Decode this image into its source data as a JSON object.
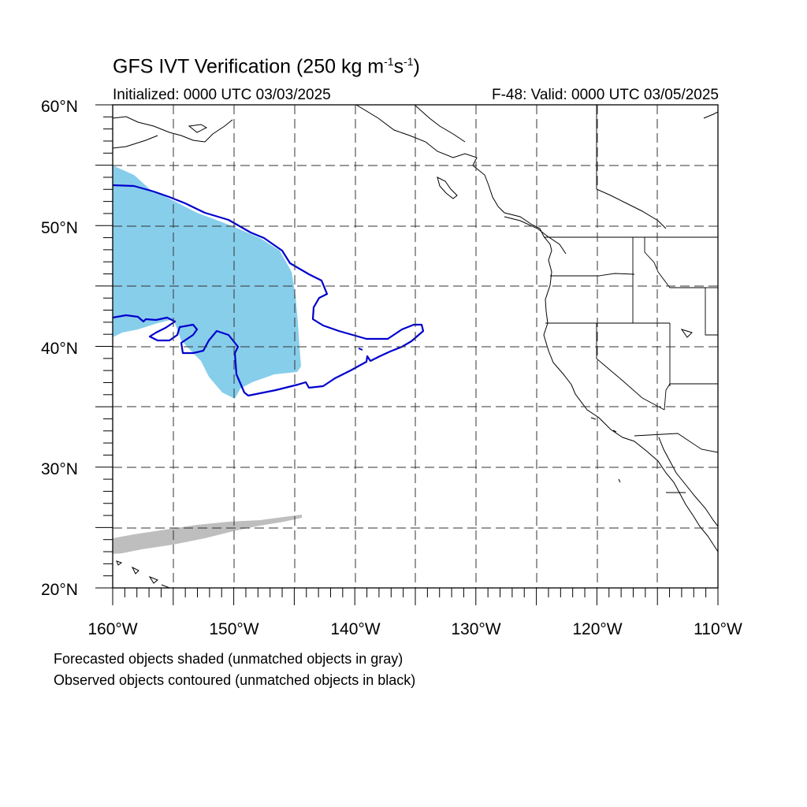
{
  "title": {
    "main": "GFS IVT Verification (250 kg m",
    "exp1": "-1",
    "mid": "s",
    "exp2": "-1",
    "end": ")"
  },
  "subtitle_left": "Initialized: 0000 UTC 03/03/2025",
  "subtitle_right": "F-48: Valid: 0000 UTC 03/05/2025",
  "lat_labels": [
    "60°N",
    "50°N",
    "40°N",
    "30°N",
    "20°N"
  ],
  "lon_labels": [
    "160°W",
    "150°W",
    "140°W",
    "130°W",
    "120°W",
    "110°W"
  ],
  "legend": {
    "line1": "Forecasted objects shaded (unmatched objects in gray)",
    "line2": "Observed objects contoured (unmatched objects in black)"
  },
  "colors": {
    "forecast_matched": "#87ceeb",
    "forecast_unmatched": "#bebebe",
    "observed_matched": "#0000cd",
    "coastline": "#000000"
  }
}
